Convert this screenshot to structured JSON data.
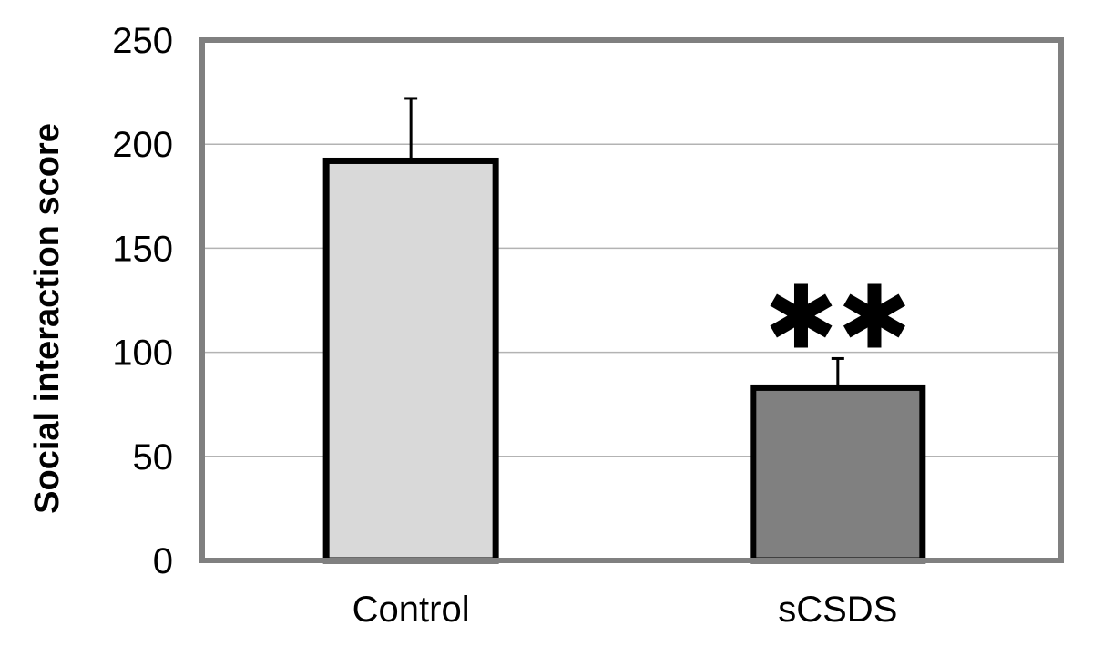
{
  "chart_data": {
    "type": "bar",
    "title": "",
    "xlabel": "",
    "ylabel": "Social interaction score",
    "ylim": [
      0,
      250
    ],
    "yticks": [
      "0",
      "50",
      "100",
      "150",
      "200",
      "250"
    ],
    "grid": true,
    "categories": [
      "Control",
      "sCSDS"
    ],
    "values": [
      192,
      83
    ],
    "errors": [
      30,
      14
    ],
    "bar_colors": [
      "#d9d9d9",
      "#808080"
    ],
    "annotations": [
      {
        "category": "sCSDS",
        "text": "✱✱"
      }
    ]
  },
  "colors": {
    "bar_outline": "#000000",
    "frame": "#808080",
    "gridline": "#b3b3b3"
  }
}
